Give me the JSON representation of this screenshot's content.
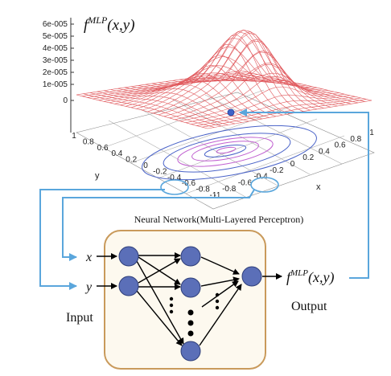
{
  "plot": {
    "function_label": {
      "main": "f",
      "superscript": "MLP",
      "args": "(x,y)"
    },
    "z_ticks": [
      "6e-005",
      "5e-005",
      "4e-005",
      "3e-005",
      "2e-005",
      "1e-005",
      "0"
    ],
    "y_ticks": [
      "1",
      "0.8",
      "0.6",
      "0.4",
      "0.2",
      "0",
      "-0.2",
      "-0.4",
      "-0.6",
      "-0.8",
      "-1"
    ],
    "x_ticks": [
      "-1",
      "-0.8",
      "-0.6",
      "-0.4",
      "-0.2",
      "0",
      "0.2",
      "0.4",
      "0.6",
      "0.8",
      "1"
    ],
    "y_axis_label": "y",
    "x_axis_label": "x"
  },
  "network": {
    "title": "Neural Network(Multi-Layered Perceptron)",
    "inputs": [
      "x",
      "y"
    ],
    "input_caption": "Input",
    "output_caption": "Output",
    "output_label": {
      "main": "f",
      "superscript": "MLP",
      "args": "(x,y)"
    }
  },
  "colors": {
    "mesh": "#e0585c",
    "contour_blue": "#4a63c8",
    "contour_purple": "#c060d0",
    "arrow_blue": "#5aa6dc",
    "node_fill": "#5b6fb8",
    "node_stroke": "#2f3f7a",
    "box_border": "#c99a5b"
  }
}
